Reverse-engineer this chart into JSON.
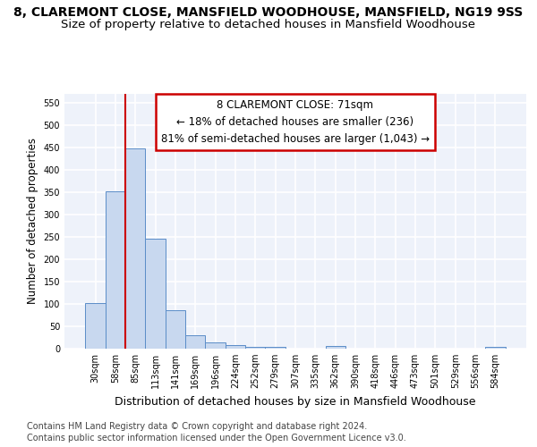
{
  "title": "8, CLAREMONT CLOSE, MANSFIELD WOODHOUSE, MANSFIELD, NG19 9SS",
  "subtitle": "Size of property relative to detached houses in Mansfield Woodhouse",
  "xlabel": "Distribution of detached houses by size in Mansfield Woodhouse",
  "ylabel": "Number of detached properties",
  "footnote1": "Contains HM Land Registry data © Crown copyright and database right 2024.",
  "footnote2": "Contains public sector information licensed under the Open Government Licence v3.0.",
  "bin_labels": [
    "30sqm",
    "58sqm",
    "85sqm",
    "113sqm",
    "141sqm",
    "169sqm",
    "196sqm",
    "224sqm",
    "252sqm",
    "279sqm",
    "307sqm",
    "335sqm",
    "362sqm",
    "390sqm",
    "418sqm",
    "446sqm",
    "473sqm",
    "501sqm",
    "529sqm",
    "556sqm",
    "584sqm"
  ],
  "bar_values": [
    103,
    353,
    448,
    246,
    87,
    30,
    14,
    9,
    5,
    5,
    0,
    0,
    6,
    0,
    0,
    0,
    0,
    0,
    0,
    0,
    5
  ],
  "bar_color": "#c8d8ef",
  "bar_edge_color": "#5b8dc8",
  "vline_x": 1.5,
  "vline_color": "#cc0000",
  "annotation_box_text": "8 CLAREMONT CLOSE: 71sqm\n← 18% of detached houses are smaller (236)\n81% of semi-detached houses are larger (1,043) →",
  "annotation_box_color": "#cc0000",
  "ylim": [
    0,
    570
  ],
  "yticks": [
    0,
    50,
    100,
    150,
    200,
    250,
    300,
    350,
    400,
    450,
    500,
    550
  ],
  "background_color": "#eef2fa",
  "grid_color": "#ffffff",
  "title_fontsize": 10,
  "subtitle_fontsize": 9.5,
  "xlabel_fontsize": 9,
  "ylabel_fontsize": 8.5,
  "tick_fontsize": 7,
  "annotation_fontsize": 8.5,
  "footnote_fontsize": 7
}
